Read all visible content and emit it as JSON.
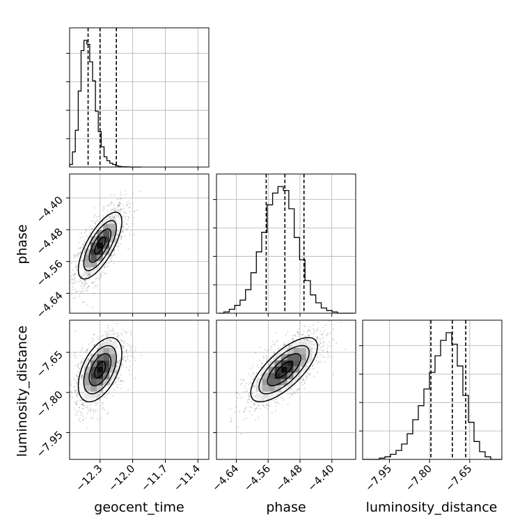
{
  "chart_data": {
    "type": "corner",
    "parameters": [
      "geocent_time",
      "phase",
      "luminosity_distance"
    ],
    "axis_labels": {
      "bottom": [
        "geocent_time",
        "phase",
        "luminosity_distance"
      ],
      "left": [
        "phase",
        "luminosity_distance"
      ]
    },
    "grid": true,
    "axes": {
      "geocent_time": {
        "range": [
          -12.58,
          -11.3
        ],
        "ticks": [
          -12.3,
          -12.0,
          -11.7,
          -11.4
        ],
        "tick_labels": [
          "−12.3",
          "−12.0",
          "−11.7",
          "−11.4"
        ]
      },
      "phase": {
        "range": [
          -4.69,
          -4.34
        ],
        "ticks": [
          -4.64,
          -4.56,
          -4.48,
          -4.4
        ],
        "tick_labels": [
          "−4.64",
          "−4.56",
          "−4.48",
          "−4.40"
        ]
      },
      "luminosity_distance": {
        "range": [
          -8.05,
          -7.53
        ],
        "ticks": [
          -7.95,
          -7.8,
          -7.65
        ],
        "tick_labels": [
          "−7.95",
          "−7.80",
          "−7.65"
        ]
      }
    },
    "quantiles": {
      "geocent_time": [
        -12.41,
        -12.3,
        -12.15
      ],
      "phase": [
        -4.565,
        -4.518,
        -4.47
      ],
      "luminosity_distance": [
        -7.795,
        -7.715,
        -7.665
      ]
    },
    "histograms": {
      "geocent_time": {
        "edges": [
          -12.58,
          -12.5536,
          -12.5272,
          -12.5008,
          -12.4744,
          -12.448,
          -12.4216,
          -12.3952,
          -12.3688,
          -12.3424,
          -12.316,
          -12.2896,
          -12.2632,
          -12.2368,
          -12.2104,
          -12.184,
          -12.1576,
          -12.1312,
          -12.1048,
          -12.0784,
          -12.052,
          -12.0256,
          -11.9992,
          -11.9728,
          -11.9464,
          -11.92
        ],
        "counts": [
          0.02,
          0.12,
          0.29,
          0.6,
          0.92,
          1.0,
          0.97,
          0.83,
          0.68,
          0.44,
          0.28,
          0.16,
          0.08,
          0.05,
          0.03,
          0.02,
          0.01,
          0.005,
          0.003,
          0.002,
          0.001,
          0.0,
          0.0,
          0.0,
          0.0
        ]
      },
      "phase": {
        "edges": [
          -4.685,
          -4.6714,
          -4.6578,
          -4.6442,
          -4.6306,
          -4.617,
          -4.6034,
          -4.5898,
          -4.5762,
          -4.5626,
          -4.549,
          -4.5354,
          -4.5218,
          -4.5082,
          -4.4946,
          -4.481,
          -4.4674,
          -4.4538,
          -4.4402,
          -4.4266,
          -4.413,
          -4.3994,
          -4.3858,
          -4.3722,
          -4.3586,
          -4.345
        ],
        "counts": [
          0.0,
          0.01,
          0.03,
          0.06,
          0.1,
          0.18,
          0.31,
          0.47,
          0.62,
          0.83,
          0.92,
          0.97,
          0.94,
          0.8,
          0.58,
          0.41,
          0.25,
          0.14,
          0.08,
          0.04,
          0.02,
          0.01,
          0.0,
          0.0,
          0.0
        ]
      },
      "luminosity_distance": {
        "edges": [
          -8.05,
          -8.0292,
          -8.0084,
          -7.9876,
          -7.9668,
          -7.946,
          -7.9252,
          -7.9044,
          -7.8836,
          -7.8628,
          -7.842,
          -7.8212,
          -7.8004,
          -7.7796,
          -7.7588,
          -7.738,
          -7.7172,
          -7.6964,
          -7.6756,
          -7.6548,
          -7.634,
          -7.6132,
          -7.5924,
          -7.5716,
          -7.5508,
          -7.53
        ],
        "counts": [
          0.0,
          0.0,
          0.0,
          0.01,
          0.02,
          0.04,
          0.07,
          0.12,
          0.2,
          0.31,
          0.42,
          0.55,
          0.68,
          0.81,
          0.93,
          0.99,
          0.9,
          0.73,
          0.5,
          0.29,
          0.14,
          0.06,
          0.02,
          0.0,
          0.0
        ]
      }
    },
    "joint": [
      {
        "x": "geocent_time",
        "y": "phase",
        "mean": [
          -12.3,
          -4.52
        ],
        "sd": [
          0.1,
          0.042
        ],
        "corr": 0.72
      },
      {
        "x": "geocent_time",
        "y": "luminosity_distance",
        "mean": [
          -12.3,
          -7.715
        ],
        "sd": [
          0.1,
          0.06
        ],
        "corr": 0.5
      },
      {
        "x": "phase",
        "y": "luminosity_distance",
        "mean": [
          -4.52,
          -7.715
        ],
        "sd": [
          0.042,
          0.06
        ],
        "corr": 0.72
      }
    ]
  }
}
